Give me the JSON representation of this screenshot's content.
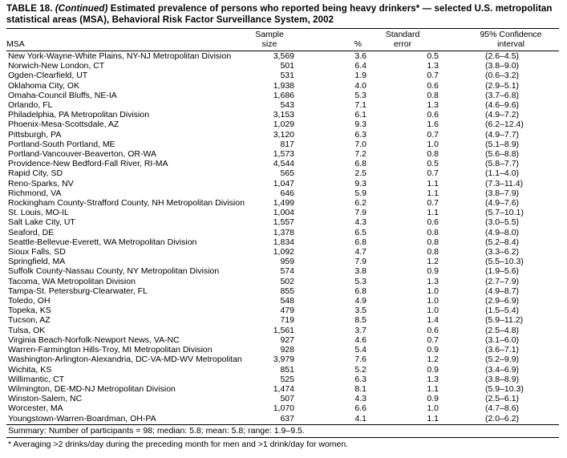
{
  "title": {
    "prefix": "TABLE 18.",
    "continued": "(Continued)",
    "rest": "Estimated prevalence of persons who reported being heavy drinkers* — selected U.S. metropolitan statistical areas (MSA), Behavioral Risk Factor Surveillance System, 2002"
  },
  "header": {
    "msa": "MSA",
    "sample_line1": "Sample",
    "sample_line2": "size",
    "pct": "%",
    "se_line1": "Standard",
    "se_line2": "error",
    "ci_line1": "95% Confidence",
    "ci_line2": "interval"
  },
  "rows": [
    {
      "msa": "New York-Wayne-White Plains, NY-NJ Metropolitan Division",
      "n": "3,569",
      "pct": "3.6",
      "se": "0.5",
      "ci": "(2.6–4.5)"
    },
    {
      "msa": "Norwich-New London, CT",
      "n": "501",
      "pct": "6.4",
      "se": "1.3",
      "ci": "(3.8–9.0)"
    },
    {
      "msa": "Ogden-Clearfield, UT",
      "n": "531",
      "pct": "1.9",
      "se": "0.7",
      "ci": "(0.6–3.2)"
    },
    {
      "msa": "Oklahoma City, OK",
      "n": "1,938",
      "pct": "4.0",
      "se": "0.6",
      "ci": "(2.9–5.1)"
    },
    {
      "msa": "Omaha-Council Bluffs, NE-IA",
      "n": "1,686",
      "pct": "5.3",
      "se": "0.8",
      "ci": "(3.7–6.8)"
    },
    {
      "msa": "Orlando, FL",
      "n": "543",
      "pct": "7.1",
      "se": "1.3",
      "ci": "(4.6–9.6)"
    },
    {
      "msa": "Philadelphia, PA Metropolitan Division",
      "n": "3,153",
      "pct": "6.1",
      "se": "0.6",
      "ci": "(4.9–7.2)"
    },
    {
      "msa": "Phoenix-Mesa-Scottsdale, AZ",
      "n": "1,029",
      "pct": "9.3",
      "se": "1.6",
      "ci": "(6.2–12.4)"
    },
    {
      "msa": "Pittsburgh, PA",
      "n": "3,120",
      "pct": "6.3",
      "se": "0.7",
      "ci": "(4.9–7.7)"
    },
    {
      "msa": "Portland-South Portland, ME",
      "n": "817",
      "pct": "7.0",
      "se": "1.0",
      "ci": "(5.1–8.9)"
    },
    {
      "msa": "Portland-Vancouver-Beaverton, OR-WA",
      "n": "1,573",
      "pct": "7.2",
      "se": "0.8",
      "ci": "(5.6–8.8)"
    },
    {
      "msa": "Providence-New Bedford-Fall River, RI-MA",
      "n": "4,544",
      "pct": "6.8",
      "se": "0.5",
      "ci": "(5.8–7.7)"
    },
    {
      "msa": "Rapid City, SD",
      "n": "565",
      "pct": "2.5",
      "se": "0.7",
      "ci": "(1.1–4.0)"
    },
    {
      "msa": "Reno-Sparks, NV",
      "n": "1,047",
      "pct": "9.3",
      "se": "1.1",
      "ci": "(7.3–11.4)"
    },
    {
      "msa": "Richmond, VA",
      "n": "646",
      "pct": "5.9",
      "se": "1.1",
      "ci": "(3.8–7.9)"
    },
    {
      "msa": "Rockingham County-Strafford County, NH Metropolitan Division",
      "n": "1,499",
      "pct": "6.2",
      "se": "0.7",
      "ci": "(4.9–7.6)"
    },
    {
      "msa": "St. Louis, MO-IL",
      "n": "1,004",
      "pct": "7.9",
      "se": "1.1",
      "ci": "(5.7–10.1)"
    },
    {
      "msa": "Salt Lake City, UT",
      "n": "1,557",
      "pct": "4.3",
      "se": "0.6",
      "ci": "(3.0–5.5)"
    },
    {
      "msa": "Seaford, DE",
      "n": "1,378",
      "pct": "6.5",
      "se": "0.8",
      "ci": "(4.9–8.0)"
    },
    {
      "msa": "Seattle-Bellevue-Everett, WA Metropolitan Division",
      "n": "1,834",
      "pct": "6.8",
      "se": "0.8",
      "ci": "(5.2–8.4)"
    },
    {
      "msa": "Sioux Falls, SD",
      "n": "1,092",
      "pct": "4.7",
      "se": "0.8",
      "ci": "(3.3–6.2)"
    },
    {
      "msa": "Springfield, MA",
      "n": "959",
      "pct": "7.9",
      "se": "1.2",
      "ci": "(5.5–10.3)"
    },
    {
      "msa": "Suffolk County-Nassau County, NY Metropolitan Division",
      "n": "574",
      "pct": "3.8",
      "se": "0.9",
      "ci": "(1.9–5.6)"
    },
    {
      "msa": "Tacoma, WA Metropolitan Division",
      "n": "502",
      "pct": "5.3",
      "se": "1.3",
      "ci": "(2.7–7.9)"
    },
    {
      "msa": "Tampa-St. Petersburg-Clearwater, FL",
      "n": "855",
      "pct": "6.8",
      "se": "1.0",
      "ci": "(4.9–8.7)"
    },
    {
      "msa": "Toledo, OH",
      "n": "548",
      "pct": "4.9",
      "se": "1.0",
      "ci": "(2.9–6.9)"
    },
    {
      "msa": "Topeka, KS",
      "n": "479",
      "pct": "3.5",
      "se": "1.0",
      "ci": "(1.5–5.4)"
    },
    {
      "msa": "Tucson, AZ",
      "n": "719",
      "pct": "8.5",
      "se": "1.4",
      "ci": "(5.9–11.2)"
    },
    {
      "msa": "Tulsa, OK",
      "n": "1,561",
      "pct": "3.7",
      "se": "0.6",
      "ci": "(2.5–4.8)"
    },
    {
      "msa": "Virginia Beach-Norfolk-Newport News, VA-NC",
      "n": "927",
      "pct": "4.6",
      "se": "0.7",
      "ci": "(3.1–6.0)"
    },
    {
      "msa": "Warren-Farmington Hills-Troy, MI Metropolitan Division",
      "n": "928",
      "pct": "5.4",
      "se": "0.9",
      "ci": "(3.6–7.1)"
    },
    {
      "msa": "Washington-Arlington-Alexandria, DC-VA-MD-WV Metropolitan Division",
      "n": "3,979",
      "pct": "7.6",
      "se": "1.2",
      "ci": "(5.2–9.9)"
    },
    {
      "msa": "Wichita, KS",
      "n": "851",
      "pct": "5.2",
      "se": "0.9",
      "ci": "(3.4–6.9)"
    },
    {
      "msa": "Willimantic, CT",
      "n": "525",
      "pct": "6.3",
      "se": "1.3",
      "ci": "(3.8–8.9)"
    },
    {
      "msa": "Wilmington, DE-MD-NJ Metropolitan Division",
      "n": "1,474",
      "pct": "8.1",
      "se": "1.1",
      "ci": "(5.9–10.3)"
    },
    {
      "msa": "Winston-Salem, NC",
      "n": "507",
      "pct": "4.3",
      "se": "0.9",
      "ci": "(2.5–6.1)"
    },
    {
      "msa": "Worcester, MA",
      "n": "1,070",
      "pct": "6.6",
      "se": "1.0",
      "ci": "(4.7–8.6)"
    },
    {
      "msa": "Youngstown-Warren-Boardman, OH-PA",
      "n": "637",
      "pct": "4.1",
      "se": "1.1",
      "ci": "(2.0–6.2)"
    }
  ],
  "footer": {
    "summary": "Summary: Number of participants = 98; median: 5.8; mean: 5.8; range: 1.9–9.5.",
    "footnote": "* Averaging >2 drinks/day during the preceding month for men and >1 drink/day for women."
  }
}
